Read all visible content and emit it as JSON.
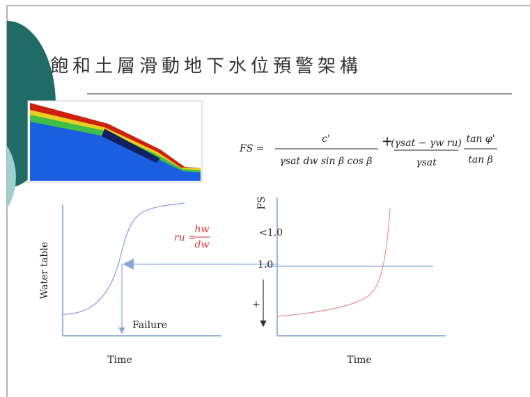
{
  "title": "飽和土層滑動地下水位預警架構",
  "formula": {
    "lhs": "FS =",
    "num1": "c'",
    "den1": "γsat dw sin β cos β",
    "plus": "+",
    "num2": "(γsat − γw ru)",
    "den2": "γsat",
    "num3": "tan φ'",
    "den3": "tan β"
  },
  "left_chart": {
    "y_label": "Water table",
    "x_label": "Time",
    "event": "Failure",
    "equation_lhs": "ru =",
    "equation_num": "hw",
    "equation_den": "dw"
  },
  "right_chart": {
    "y_label": "FS",
    "tick_low": "<1.0",
    "tick_one": "1.0",
    "sign": "+",
    "x_label": "Time"
  }
}
